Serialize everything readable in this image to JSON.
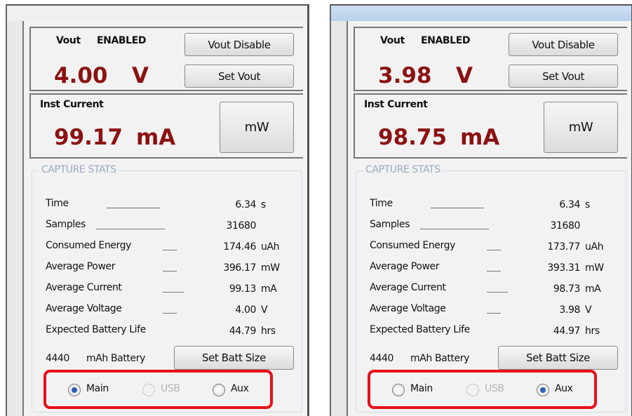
{
  "panels": [
    {
      "vout_label": "Vout",
      "status": "ENABLED",
      "disable_button": "Vout Disable",
      "set_button": "Set Vout",
      "voltage": "4.00",
      "voltage_unit": "V",
      "current_label": "Inst Current",
      "current": "99.17",
      "current_unit": "mA",
      "mw_button": "mW",
      "stats_title": "CAPTURE STATS",
      "stats": [
        {
          "label": "Time",
          "value": "6.34",
          "unit": "s"
        },
        {
          "label": "Samples",
          "value": "31680"
        },
        {
          "label": "Consumed Energy",
          "value": "174.46",
          "unit": "uAh"
        },
        {
          "label": "Average Power",
          "value": "396.17",
          "unit": "mW"
        },
        {
          "label": "Average Current",
          "value": "99.13",
          "unit": "mA"
        },
        {
          "label": "Average Voltage",
          "value": "4.00",
          "unit": "V"
        },
        {
          "label": "Expected Battery Life",
          "value": "44.79",
          "unit": "hrs"
        }
      ],
      "battery_size": "4440",
      "battery_label": "mAh Battery",
      "batt_button": "Set Batt Size",
      "radios": [
        {
          "label": "Main",
          "selected": true,
          "enabled": true
        },
        {
          "label": "USB",
          "selected": false,
          "enabled": false
        },
        {
          "label": "Aux",
          "selected": false,
          "enabled": true
        }
      ]
    },
    {
      "vout_label": "Vout",
      "status": "ENABLED",
      "disable_button": "Vout Disable",
      "set_button": "Set Vout",
      "voltage": "3.98",
      "voltage_unit": "V",
      "current_label": "Inst Current",
      "current": "98.75",
      "current_unit": "mA",
      "mw_button": "mW",
      "stats_title": "CAPTURE STATS",
      "stats": [
        {
          "label": "Time",
          "value": "6.34",
          "unit": "s"
        },
        {
          "label": "Samples",
          "value": "31680"
        },
        {
          "label": "Consumed Energy",
          "value": "173.77",
          "unit": "uAh"
        },
        {
          "label": "Average Power",
          "value": "393.31",
          "unit": "mW"
        },
        {
          "label": "Average Current",
          "value": "98.73",
          "unit": "mA"
        },
        {
          "label": "Average Voltage",
          "value": "3.98",
          "unit": "V"
        },
        {
          "label": "Expected Battery Life",
          "value": "44.97",
          "unit": "hrs"
        }
      ],
      "battery_size": "4440",
      "battery_label": "mAh Battery",
      "batt_button": "Set Batt Size",
      "radios": [
        {
          "label": "Main",
          "selected": false,
          "enabled": true
        },
        {
          "label": "USB",
          "selected": false,
          "enabled": false
        },
        {
          "label": "Aux",
          "selected": true,
          "enabled": true
        }
      ]
    }
  ]
}
